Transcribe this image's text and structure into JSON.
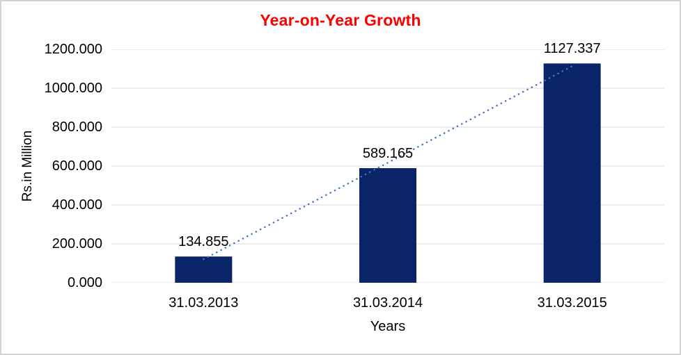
{
  "chart_data": {
    "type": "bar",
    "title": "Year-on-Year Growth",
    "categories": [
      "31.03.2013",
      "31.03.2014",
      "31.03.2015"
    ],
    "values": [
      134.855,
      589.165,
      1127.337
    ],
    "data_labels": [
      "134.855",
      "589.165",
      "1127.337"
    ],
    "xlabel": "Years",
    "ylabel": "Rs.in Million",
    "ylim": [
      0,
      1200
    ],
    "ytick_step": 200,
    "ytick_labels": [
      "0.000",
      "200.000",
      "400.000",
      "600.000",
      "800.000",
      "1000.000",
      "1200.000"
    ],
    "grid": true,
    "legend": false,
    "trendline": {
      "type": "linear",
      "style": "dotted"
    },
    "colors": {
      "bar": "#0A2468",
      "title": "#FF0000",
      "gridline": "#D9D9D9",
      "trendline": "#4472C4",
      "text": "#000000",
      "frame_border": "#D2D2D2",
      "background": "#FFFFFF"
    }
  }
}
